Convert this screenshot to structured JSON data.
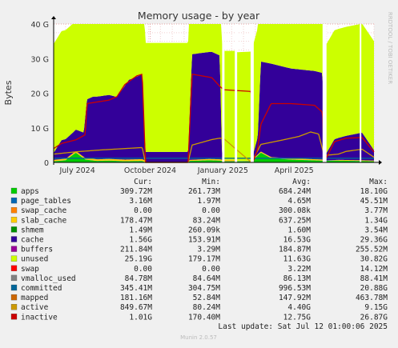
{
  "chart_data": {
    "type": "area",
    "title": "Memory usage - by year",
    "ylabel": "Bytes",
    "side_label": "RRDTOOL / TOBI OETIKER",
    "y_ticks": [
      "0",
      "10 G",
      "20 G",
      "30 G",
      "40 G"
    ],
    "ylim": [
      0,
      40
    ],
    "y_unit": "G",
    "x_ticks": [
      "July 2024",
      "October 2024",
      "January 2025",
      "April 2025"
    ],
    "x_ticks_day": [
      30,
      122,
      214,
      304
    ],
    "x_range_days": [
      0,
      405
    ],
    "grid": true,
    "stack": [
      {
        "name": "apps",
        "color": "#00cc00",
        "points": [
          [
            0,
            0.3
          ],
          [
            15,
            0.6
          ],
          [
            28,
            2.8
          ],
          [
            40,
            0.8
          ],
          [
            55,
            0.4
          ],
          [
            70,
            0.5
          ],
          [
            90,
            0.3
          ],
          [
            112,
            0.4
          ],
          [
            116,
            0
          ],
          [
            170,
            0
          ],
          [
            172,
            0.4
          ],
          [
            196,
            0.6
          ],
          [
            210,
            0.5
          ],
          [
            215,
            0.3
          ],
          [
            250,
            0.3
          ],
          [
            262,
            2.8
          ],
          [
            275,
            1.2
          ],
          [
            300,
            0.8
          ],
          [
            340,
            0.5
          ],
          [
            360,
            0.5
          ],
          [
            405,
            0.3
          ]
        ]
      },
      {
        "name": "page_tables",
        "color": "#0066b3",
        "points": [
          [
            0,
            0.04
          ],
          [
            405,
            0.04
          ]
        ]
      },
      {
        "name": "slab_cache",
        "color": "#ffcc00",
        "points": [
          [
            0,
            0.4
          ],
          [
            116,
            0.5
          ],
          [
            116,
            0
          ],
          [
            170,
            0
          ],
          [
            172,
            0.3
          ],
          [
            230,
            0.4
          ],
          [
            232,
            0
          ],
          [
            260,
            0.3
          ],
          [
            340,
            0.3
          ],
          [
            342,
            0
          ],
          [
            360,
            0.2
          ],
          [
            405,
            0.2
          ]
        ]
      },
      {
        "name": "cache",
        "color": "#330099",
        "points": [
          [
            0,
            2
          ],
          [
            10,
            5.5
          ],
          [
            25,
            6
          ],
          [
            38,
            7
          ],
          [
            42,
            17
          ],
          [
            50,
            18
          ],
          [
            70,
            18.5
          ],
          [
            80,
            18
          ],
          [
            95,
            23
          ],
          [
            112,
            24.5
          ],
          [
            116,
            3
          ],
          [
            170,
            3
          ],
          [
            175,
            30.5
          ],
          [
            200,
            31
          ],
          [
            210,
            30
          ],
          [
            213,
            0
          ],
          [
            250,
            0
          ],
          [
            258,
            5
          ],
          [
            262,
            26
          ],
          [
            275,
            27
          ],
          [
            300,
            26
          ],
          [
            330,
            25.5
          ],
          [
            340,
            25
          ],
          [
            342,
            1
          ],
          [
            355,
            6
          ],
          [
            370,
            7
          ],
          [
            390,
            8
          ],
          [
            405,
            3
          ]
        ]
      },
      {
        "name": "unused",
        "color": "#ccff00",
        "points": [
          [
            0,
            31.5
          ],
          [
            405,
            31.5
          ]
        ]
      }
    ],
    "lines": [
      {
        "name": "committed",
        "color": "#006699",
        "points": [
          [
            0,
            1.2
          ],
          [
            405,
            1.2
          ]
        ]
      },
      {
        "name": "active",
        "color": "#cc9900",
        "points": [
          [
            0,
            2.4
          ],
          [
            30,
            3.1
          ],
          [
            60,
            3.6
          ],
          [
            90,
            4.0
          ],
          [
            112,
            4.3
          ],
          [
            116,
            0
          ],
          [
            170,
            0
          ],
          [
            175,
            5.0
          ],
          [
            200,
            6.6
          ],
          [
            210,
            7.0
          ],
          [
            215,
            6.9
          ],
          [
            250,
            0
          ],
          [
            262,
            5.2
          ],
          [
            290,
            6.5
          ],
          [
            310,
            7.5
          ],
          [
            325,
            8.8
          ],
          [
            335,
            8.2
          ],
          [
            342,
            2.0
          ],
          [
            360,
            2.4
          ],
          [
            370,
            3.2
          ],
          [
            390,
            3.8
          ],
          [
            405,
            1.5
          ]
        ]
      },
      {
        "name": "inactive",
        "color": "#cc0000",
        "points": [
          [
            0,
            4.0
          ],
          [
            10,
            5.5
          ],
          [
            28,
            6.5
          ],
          [
            40,
            8
          ],
          [
            42,
            17
          ],
          [
            70,
            18
          ],
          [
            80,
            19
          ],
          [
            90,
            22.5
          ],
          [
            105,
            25
          ],
          [
            112,
            25.5
          ],
          [
            116,
            0
          ],
          [
            170,
            0
          ],
          [
            175,
            25.5
          ],
          [
            200,
            24.5
          ],
          [
            210,
            22
          ],
          [
            215,
            21
          ],
          [
            250,
            20.5
          ],
          [
            252,
            0
          ],
          [
            258,
            4
          ],
          [
            262,
            11
          ],
          [
            275,
            17
          ],
          [
            300,
            17
          ],
          [
            330,
            16.5
          ],
          [
            340,
            14.5
          ],
          [
            342,
            0
          ],
          [
            355,
            6
          ],
          [
            370,
            7
          ],
          [
            390,
            7.2
          ],
          [
            405,
            3
          ]
        ]
      }
    ],
    "gaps": [
      [
        213,
        216
      ],
      [
        229,
        232
      ],
      [
        249,
        253
      ],
      [
        340,
        345
      ],
      [
        387,
        389
      ]
    ]
  },
  "legend": {
    "headers": [
      "Cur:",
      "Min:",
      "Avg:",
      "Max:"
    ],
    "rows": [
      {
        "name": "apps",
        "color": "#00cc00",
        "cur": "309.72M",
        "min": "261.73M",
        "avg": "684.24M",
        "max": "18.10G"
      },
      {
        "name": "page_tables",
        "color": "#0066b3",
        "cur": "3.16M",
        "min": "1.97M",
        "avg": "4.65M",
        "max": "45.51M"
      },
      {
        "name": "swap_cache",
        "color": "#ff8000",
        "cur": "0.00",
        "min": "0.00",
        "avg": "300.08k",
        "max": "3.77M"
      },
      {
        "name": "slab_cache",
        "color": "#ffcc00",
        "cur": "178.47M",
        "min": "83.24M",
        "avg": "637.25M",
        "max": "1.34G"
      },
      {
        "name": "shmem",
        "color": "#008f00",
        "cur": "1.49M",
        "min": "260.09k",
        "avg": "1.60M",
        "max": "3.54M"
      },
      {
        "name": "cache",
        "color": "#330099",
        "cur": "1.56G",
        "min": "153.91M",
        "avg": "16.53G",
        "max": "29.36G"
      },
      {
        "name": "buffers",
        "color": "#990099",
        "cur": "211.84M",
        "min": "3.29M",
        "avg": "184.87M",
        "max": "255.52M"
      },
      {
        "name": "unused",
        "color": "#ccff00",
        "cur": "25.19G",
        "min": "179.17M",
        "avg": "11.63G",
        "max": "30.82G"
      },
      {
        "name": "swap",
        "color": "#ff0000",
        "cur": "0.00",
        "min": "0.00",
        "avg": "3.22M",
        "max": "14.12M"
      },
      {
        "name": "vmalloc_used",
        "color": "#808080",
        "cur": "84.78M",
        "min": "84.64M",
        "avg": "86.13M",
        "max": "88.41M"
      },
      {
        "name": "committed",
        "color": "#006699",
        "cur": "345.41M",
        "min": "304.75M",
        "avg": "996.53M",
        "max": "20.88G"
      },
      {
        "name": "mapped",
        "color": "#cc6600",
        "cur": "181.16M",
        "min": "52.84M",
        "avg": "147.92M",
        "max": "463.78M"
      },
      {
        "name": "active",
        "color": "#cc9900",
        "cur": "849.67M",
        "min": "80.24M",
        "avg": "4.40G",
        "max": "9.15G"
      },
      {
        "name": "inactive",
        "color": "#cc0000",
        "cur": "1.01G",
        "min": "170.40M",
        "avg": "12.75G",
        "max": "26.87G"
      }
    ]
  },
  "last_update": "Last update: Sat Jul 12 01:00:06 2025",
  "footer": "Munin 2.0.57"
}
